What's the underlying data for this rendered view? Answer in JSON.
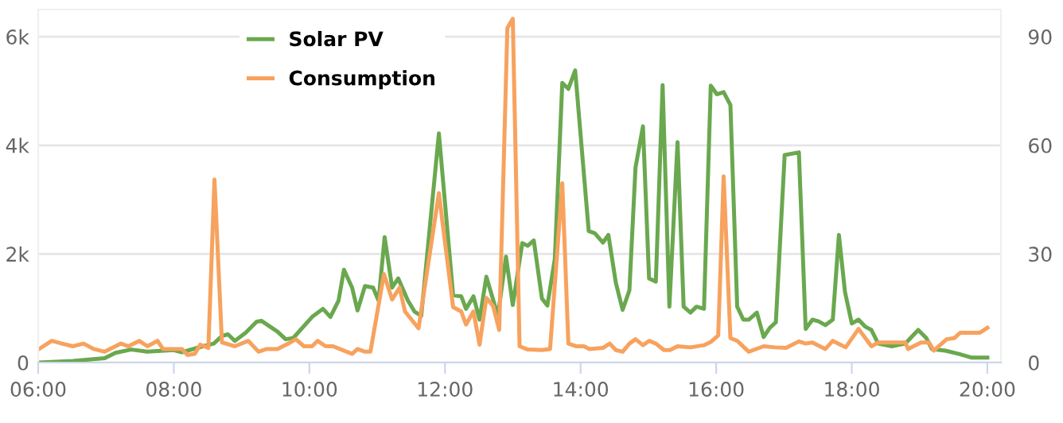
{
  "chart_data": {
    "type": "line",
    "xlim": [
      6,
      20.2
    ],
    "xticks": [
      {
        "value": 6,
        "label": "06:00"
      },
      {
        "value": 8,
        "label": "08:00"
      },
      {
        "value": 10,
        "label": "10:00"
      },
      {
        "value": 12,
        "label": "12:00"
      },
      {
        "value": 14,
        "label": "14:00"
      },
      {
        "value": 16,
        "label": "16:00"
      },
      {
        "value": 18,
        "label": "18:00"
      },
      {
        "value": 20,
        "label": "20:00"
      }
    ],
    "ylim": [
      0,
      6500
    ],
    "yticks": [
      0,
      {
        "value": 2000,
        "label": "2k"
      },
      {
        "value": 4000,
        "label": "4k"
      },
      {
        "value": 6000,
        "label": "6k"
      }
    ],
    "y2lim": [
      0,
      97.5
    ],
    "y2ticks": [
      0,
      30,
      60,
      90
    ],
    "grid": "y",
    "legend": "top left",
    "series": [
      {
        "name": "Solar PV",
        "color": "#6aa84f",
        "x": [
          6.0,
          6.51,
          6.98,
          7.14,
          7.37,
          7.61,
          8.0,
          8.12,
          8.43,
          8.59,
          8.71,
          8.8,
          8.9,
          9.06,
          9.22,
          9.29,
          9.53,
          9.65,
          9.76,
          10.04,
          10.2,
          10.31,
          10.43,
          10.51,
          10.63,
          10.71,
          10.82,
          10.94,
          11.02,
          11.11,
          11.22,
          11.31,
          11.45,
          11.55,
          11.65,
          11.91,
          12.12,
          12.24,
          12.31,
          12.42,
          12.51,
          12.61,
          12.78,
          12.9,
          13.0,
          13.14,
          13.22,
          13.31,
          13.43,
          13.51,
          13.62,
          13.73,
          13.82,
          13.92,
          14.12,
          14.21,
          14.33,
          14.41,
          14.52,
          14.62,
          14.72,
          14.81,
          14.92,
          15.01,
          15.11,
          15.21,
          15.31,
          15.43,
          15.52,
          15.62,
          15.71,
          15.82,
          15.92,
          16.01,
          16.11,
          16.21,
          16.31,
          16.4,
          16.48,
          16.6,
          16.7,
          16.79,
          16.88,
          17.01,
          17.22,
          17.32,
          17.42,
          17.51,
          17.61,
          17.72,
          17.81,
          17.9,
          18.0,
          18.1,
          18.2,
          18.29,
          18.39,
          18.59,
          18.79,
          18.98,
          19.1,
          19.18,
          19.38,
          19.58,
          19.77,
          20.0
        ],
        "values": [
          0,
          30,
          80,
          180,
          240,
          200,
          230,
          190,
          300,
          350,
          490,
          520,
          400,
          550,
          750,
          770,
          570,
          430,
          450,
          840,
          990,
          840,
          1140,
          1710,
          1380,
          960,
          1410,
          1380,
          1140,
          2310,
          1380,
          1550,
          1150,
          940,
          860,
          4220,
          1240,
          1220,
          990,
          1220,
          790,
          1580,
          860,
          1950,
          1060,
          2200,
          2150,
          2250,
          1180,
          1050,
          1910,
          5150,
          5040,
          5380,
          2420,
          2380,
          2210,
          2350,
          1470,
          970,
          1330,
          3590,
          4350,
          1550,
          1490,
          5110,
          1030,
          4060,
          1030,
          920,
          1030,
          990,
          5100,
          4940,
          4980,
          4740,
          1030,
          790,
          790,
          920,
          470,
          640,
          740,
          3820,
          3870,
          620,
          790,
          760,
          690,
          790,
          2350,
          1300,
          720,
          790,
          660,
          600,
          350,
          300,
          350,
          600,
          450,
          250,
          220,
          160,
          90,
          90
        ]
      },
      {
        "name": "Consumption",
        "color": "#f7a25e",
        "x": [
          6.0,
          6.2,
          6.35,
          6.51,
          6.67,
          6.82,
          6.98,
          7.14,
          7.22,
          7.33,
          7.49,
          7.61,
          7.76,
          7.84,
          8.0,
          8.12,
          8.2,
          8.31,
          8.39,
          8.51,
          8.6,
          8.71,
          8.9,
          9.1,
          9.25,
          9.37,
          9.53,
          9.69,
          9.8,
          9.92,
          10.04,
          10.12,
          10.24,
          10.35,
          10.63,
          10.71,
          10.82,
          10.9,
          11.1,
          11.22,
          11.33,
          11.41,
          11.61,
          11.91,
          12.12,
          12.24,
          12.31,
          12.42,
          12.51,
          12.61,
          12.71,
          12.8,
          12.92,
          13.0,
          13.1,
          13.22,
          13.43,
          13.55,
          13.73,
          13.82,
          13.94,
          14.05,
          14.13,
          14.33,
          14.43,
          14.52,
          14.62,
          14.72,
          14.81,
          14.92,
          15.01,
          15.11,
          15.23,
          15.32,
          15.43,
          15.62,
          15.82,
          15.92,
          16.03,
          16.11,
          16.21,
          16.31,
          16.48,
          16.7,
          16.87,
          17.03,
          17.22,
          17.32,
          17.42,
          17.61,
          17.72,
          17.91,
          18.1,
          18.29,
          18.39,
          18.59,
          18.79,
          18.83,
          19.02,
          19.14,
          19.21,
          19.4,
          19.51,
          19.6,
          19.89,
          20.0
        ],
        "values": [
          240,
          400,
          350,
          300,
          350,
          250,
          200,
          300,
          350,
          300,
          400,
          300,
          400,
          250,
          250,
          250,
          140,
          160,
          330,
          270,
          3370,
          370,
          300,
          400,
          200,
          250,
          250,
          350,
          430,
          300,
          300,
          400,
          300,
          300,
          160,
          250,
          200,
          200,
          1630,
          1160,
          1380,
          940,
          630,
          3120,
          1020,
          940,
          700,
          940,
          330,
          1190,
          1040,
          600,
          6160,
          6330,
          300,
          240,
          230,
          250,
          3300,
          350,
          300,
          300,
          250,
          270,
          350,
          230,
          200,
          350,
          430,
          320,
          400,
          350,
          230,
          230,
          300,
          280,
          320,
          380,
          500,
          3430,
          450,
          400,
          200,
          300,
          280,
          270,
          390,
          350,
          370,
          250,
          400,
          280,
          620,
          300,
          370,
          370,
          370,
          250,
          370,
          370,
          220,
          430,
          450,
          550,
          550,
          640
        ]
      }
    ]
  }
}
